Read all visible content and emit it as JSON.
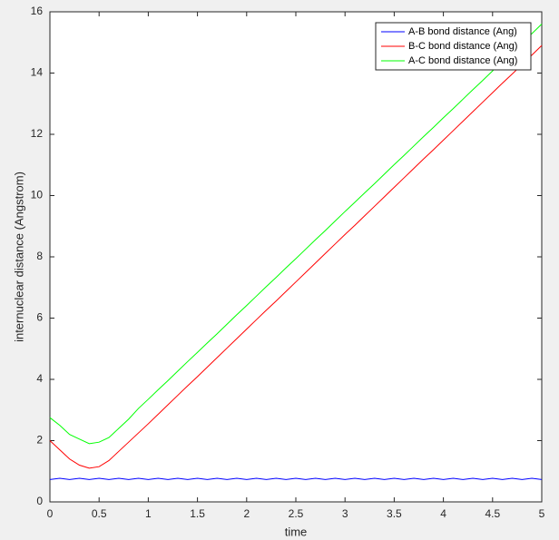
{
  "chart_data": {
    "type": "line",
    "xlabel": "time",
    "ylabel": "internuclear distance (Angstrom)",
    "x": [
      0,
      0.1,
      0.2,
      0.3,
      0.4,
      0.5,
      0.6,
      0.7,
      0.8,
      0.9,
      1.0,
      1.1,
      1.2,
      1.3,
      1.4,
      1.5,
      1.6,
      1.7,
      1.8,
      1.9,
      2.0,
      2.1,
      2.2,
      2.3,
      2.4,
      2.5,
      2.6,
      2.7,
      2.8,
      2.9,
      3.0,
      3.1,
      3.2,
      3.3,
      3.4,
      3.5,
      3.6,
      3.7,
      3.8,
      3.9,
      4.0,
      4.1,
      4.2,
      4.3,
      4.4,
      4.5,
      4.6,
      4.7,
      4.8,
      4.9,
      5.0
    ],
    "series": [
      {
        "name": "A-B bond distance (Ang)",
        "color": "#0000ff",
        "values": [
          0.73,
          0.77,
          0.73,
          0.77,
          0.73,
          0.77,
          0.73,
          0.77,
          0.73,
          0.77,
          0.73,
          0.77,
          0.73,
          0.77,
          0.73,
          0.77,
          0.73,
          0.77,
          0.73,
          0.77,
          0.73,
          0.77,
          0.73,
          0.77,
          0.73,
          0.77,
          0.73,
          0.77,
          0.73,
          0.77,
          0.73,
          0.77,
          0.73,
          0.77,
          0.73,
          0.77,
          0.73,
          0.77,
          0.73,
          0.77,
          0.73,
          0.77,
          0.73,
          0.77,
          0.73,
          0.77,
          0.73,
          0.77,
          0.73,
          0.77,
          0.73
        ]
      },
      {
        "name": "B-C bond distance (Ang)",
        "color": "#ff0000",
        "values": [
          2.0,
          1.7,
          1.4,
          1.2,
          1.1,
          1.15,
          1.35,
          1.65,
          1.95,
          2.25,
          2.55,
          2.86,
          3.17,
          3.48,
          3.79,
          4.09,
          4.4,
          4.71,
          5.02,
          5.33,
          5.64,
          5.95,
          6.26,
          6.56,
          6.87,
          7.18,
          7.49,
          7.8,
          8.11,
          8.42,
          8.73,
          9.03,
          9.34,
          9.65,
          9.96,
          10.27,
          10.58,
          10.89,
          11.2,
          11.5,
          11.81,
          12.12,
          12.43,
          12.74,
          13.05,
          13.36,
          13.67,
          13.97,
          14.28,
          14.59,
          14.9
        ]
      },
      {
        "name": "A-C bond distance (Ang)",
        "color": "#00ff00",
        "values": [
          2.75,
          2.5,
          2.2,
          2.05,
          1.9,
          1.95,
          2.1,
          2.4,
          2.7,
          3.05,
          3.35,
          3.66,
          3.96,
          4.27,
          4.58,
          4.88,
          5.19,
          5.49,
          5.8,
          6.11,
          6.41,
          6.72,
          7.03,
          7.33,
          7.64,
          7.94,
          8.25,
          8.56,
          8.86,
          9.17,
          9.48,
          9.78,
          10.09,
          10.39,
          10.7,
          11.01,
          11.31,
          11.62,
          11.93,
          12.23,
          12.54,
          12.84,
          13.15,
          13.46,
          13.76,
          14.07,
          14.38,
          14.68,
          14.99,
          15.29,
          15.6
        ]
      }
    ],
    "xlim": [
      0,
      5
    ],
    "xticks": [
      0,
      0.5,
      1,
      1.5,
      2,
      2.5,
      3,
      3.5,
      4,
      4.5,
      5
    ],
    "ylim": [
      0,
      16
    ],
    "yticks": [
      0,
      2,
      4,
      6,
      8,
      10,
      12,
      14,
      16
    ],
    "grid": false,
    "legend": "northeast"
  }
}
